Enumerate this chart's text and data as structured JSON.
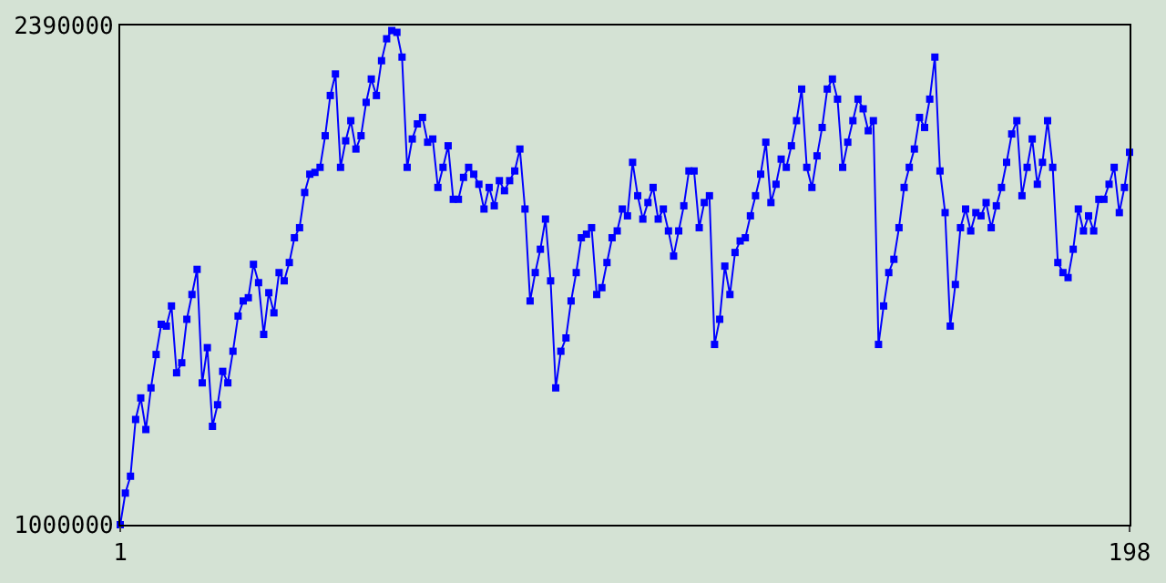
{
  "chart_data": {
    "type": "line",
    "x": [
      1,
      2,
      3,
      4,
      5,
      6,
      7,
      8,
      9,
      10,
      11,
      12,
      13,
      14,
      15,
      16,
      17,
      18,
      19,
      20,
      21,
      22,
      23,
      24,
      25,
      26,
      27,
      28,
      29,
      30,
      31,
      32,
      33,
      34,
      35,
      36,
      37,
      38,
      39,
      40,
      41,
      42,
      43,
      44,
      45,
      46,
      47,
      48,
      49,
      50,
      51,
      52,
      53,
      54,
      55,
      56,
      57,
      58,
      59,
      60,
      61,
      62,
      63,
      64,
      65,
      66,
      67,
      68,
      69,
      70,
      71,
      72,
      73,
      74,
      75,
      76,
      77,
      78,
      79,
      80,
      81,
      82,
      83,
      84,
      85,
      86,
      87,
      88,
      89,
      90,
      91,
      92,
      93,
      94,
      95,
      96,
      97,
      98,
      99,
      100,
      101,
      102,
      103,
      104,
      105,
      106,
      107,
      108,
      109,
      110,
      111,
      112,
      113,
      114,
      115,
      116,
      117,
      118,
      119,
      120,
      121,
      122,
      123,
      124,
      125,
      126,
      127,
      128,
      129,
      130,
      131,
      132,
      133,
      134,
      135,
      136,
      137,
      138,
      139,
      140,
      141,
      142,
      143,
      144,
      145,
      146,
      147,
      148,
      149,
      150,
      151,
      152,
      153,
      154,
      155,
      156,
      157,
      158,
      159,
      160,
      161,
      162,
      163,
      164,
      165,
      166,
      167,
      168,
      169,
      170,
      171,
      172,
      173,
      174,
      175,
      176,
      177,
      178,
      179,
      180,
      181,
      182,
      183,
      184,
      185,
      186,
      187,
      188,
      189,
      190,
      191,
      192,
      193,
      194,
      195,
      196,
      197,
      198
    ],
    "series": [
      {
        "color": "#0000ff",
        "values": [
          1000000,
          1088000,
          1135000,
          1293000,
          1353000,
          1265000,
          1381000,
          1474000,
          1558000,
          1553000,
          1609000,
          1423000,
          1451000,
          1572000,
          1641000,
          1711000,
          1395000,
          1493000,
          1274000,
          1334000,
          1427000,
          1395000,
          1483000,
          1581000,
          1623000,
          1632000,
          1725000,
          1674000,
          1530000,
          1646000,
          1590000,
          1702000,
          1679000,
          1730000,
          1799000,
          1827000,
          1925000,
          1976000,
          1981000,
          1995000,
          2083000,
          2195000,
          2255000,
          1995000,
          2069000,
          2125000,
          2046000,
          2083000,
          2176000,
          2241000,
          2195000,
          2292000,
          2353000,
          2376000,
          2371000,
          2302000,
          1995000,
          2074000,
          2116000,
          2134000,
          2065000,
          2074000,
          1939000,
          1995000,
          2055000,
          1906000,
          1906000,
          1967000,
          1995000,
          1976000,
          1948000,
          1879000,
          1939000,
          1888000,
          1958000,
          1930000,
          1958000,
          1985000,
          2046000,
          1879000,
          1623000,
          1702000,
          1767000,
          1851000,
          1679000,
          1381000,
          1483000,
          1520000,
          1623000,
          1702000,
          1799000,
          1809000,
          1827000,
          1641000,
          1660000,
          1730000,
          1799000,
          1818000,
          1879000,
          1860000,
          2009000,
          1916000,
          1851000,
          1897000,
          1939000,
          1851000,
          1879000,
          1818000,
          1748000,
          1818000,
          1888000,
          1985000,
          1985000,
          1827000,
          1897000,
          1916000,
          1502000,
          1572000,
          1720000,
          1641000,
          1758000,
          1790000,
          1799000,
          1860000,
          1916000,
          1976000,
          2065000,
          1897000,
          1948000,
          2018000,
          1995000,
          2055000,
          2125000,
          2213000,
          1995000,
          1939000,
          2027000,
          2106000,
          2213000,
          2241000,
          2185000,
          1995000,
          2065000,
          2125000,
          2185000,
          2158000,
          2097000,
          2125000,
          1502000,
          1609000,
          1702000,
          1739000,
          1827000,
          1939000,
          1995000,
          2046000,
          2134000,
          2106000,
          2185000,
          2302000,
          1985000,
          1869000,
          1553000,
          1669000,
          1827000,
          1879000,
          1818000,
          1869000,
          1860000,
          1897000,
          1827000,
          1888000,
          1939000,
          2009000,
          2088000,
          2125000,
          1916000,
          1995000,
          2074000,
          1948000,
          2009000,
          2125000,
          1995000,
          1730000,
          1702000,
          1688000,
          1767000,
          1879000,
          1818000,
          1860000,
          1818000,
          1906000,
          1906000,
          1948000,
          1995000,
          1869000,
          1939000,
          2037000
        ]
      }
    ],
    "xlim": [
      1,
      198
    ],
    "xticks": [
      1,
      198
    ],
    "ylim": [
      1000000,
      2390000
    ],
    "yticks": [
      1000000,
      2390000
    ],
    "marker": "square",
    "line_style": "solid"
  }
}
